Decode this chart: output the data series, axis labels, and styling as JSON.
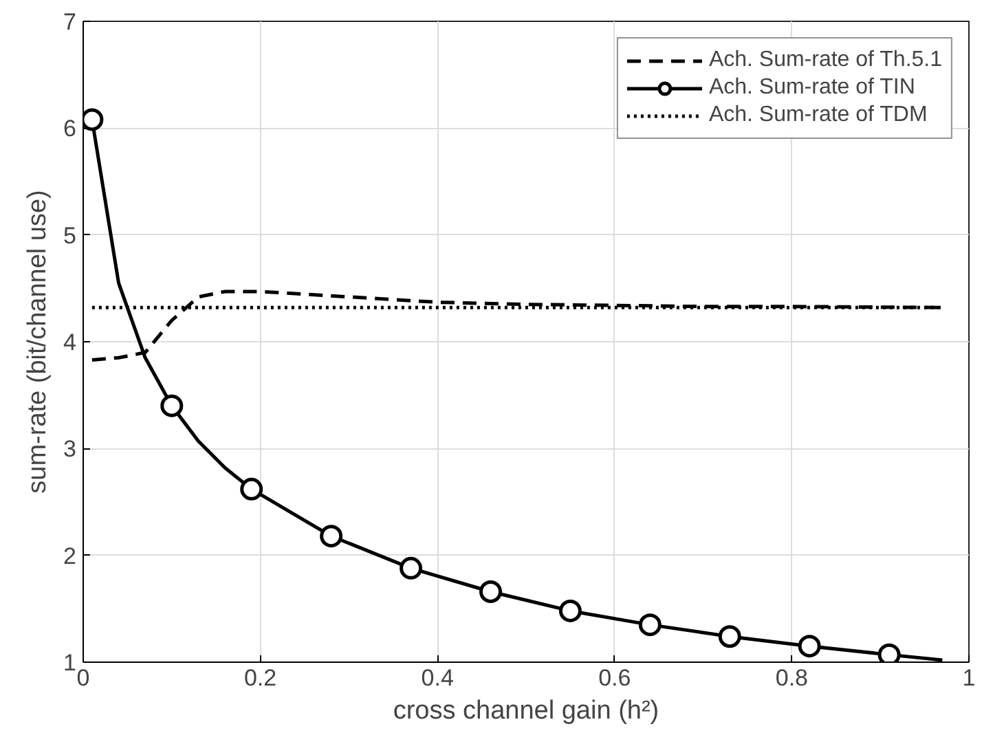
{
  "chart_data": {
    "type": "line",
    "xlabel": "cross channel gain (h²)",
    "ylabel": "sum-rate (bit/channel use)",
    "xlim": [
      0,
      1
    ],
    "ylim": [
      1,
      7
    ],
    "xticks": [
      0,
      0.2,
      0.4,
      0.6,
      0.8,
      1
    ],
    "yticks": [
      1,
      2,
      3,
      4,
      5,
      6,
      7
    ],
    "grid": true,
    "legend": "top right",
    "series": [
      {
        "name": "Ach. Sum-rate of Th.5.1",
        "color": "#000000",
        "line_style": "dashed",
        "marker": "none",
        "x": [
          0.01,
          0.04,
          0.07,
          0.1,
          0.13,
          0.16,
          0.2,
          0.3,
          0.4,
          0.5,
          0.6,
          0.7,
          0.8,
          0.97
        ],
        "values": [
          3.83,
          3.85,
          3.9,
          4.2,
          4.42,
          4.47,
          4.47,
          4.42,
          4.37,
          4.35,
          4.34,
          4.33,
          4.33,
          4.32
        ]
      },
      {
        "name": "Ach. Sum-rate of TIN",
        "color": "#000000",
        "line_style": "solid",
        "marker": "none",
        "x": [
          0.01,
          0.04,
          0.07,
          0.1,
          0.13,
          0.16,
          0.19,
          0.28,
          0.37,
          0.46,
          0.55,
          0.64,
          0.73,
          0.82,
          0.91,
          0.97
        ],
        "values": [
          6.08,
          4.55,
          3.85,
          3.4,
          3.07,
          2.82,
          2.62,
          2.18,
          1.88,
          1.66,
          1.48,
          1.35,
          1.24,
          1.15,
          1.07,
          1.02
        ]
      },
      {
        "type": "scatter",
        "color": "#000000",
        "marker": "circle",
        "x": [
          0.01,
          0.1,
          0.19,
          0.28,
          0.37,
          0.46,
          0.55,
          0.64,
          0.73,
          0.82,
          0.91
        ],
        "values": [
          6.08,
          3.4,
          2.62,
          2.18,
          1.88,
          1.66,
          1.48,
          1.35,
          1.24,
          1.15,
          1.07
        ]
      },
      {
        "name": "Ach. Sum-rate of TDM",
        "color": "#000000",
        "line_style": "dotted",
        "marker": "none",
        "x": [
          0.01,
          0.97
        ],
        "values": [
          4.32,
          4.32
        ]
      }
    ]
  }
}
